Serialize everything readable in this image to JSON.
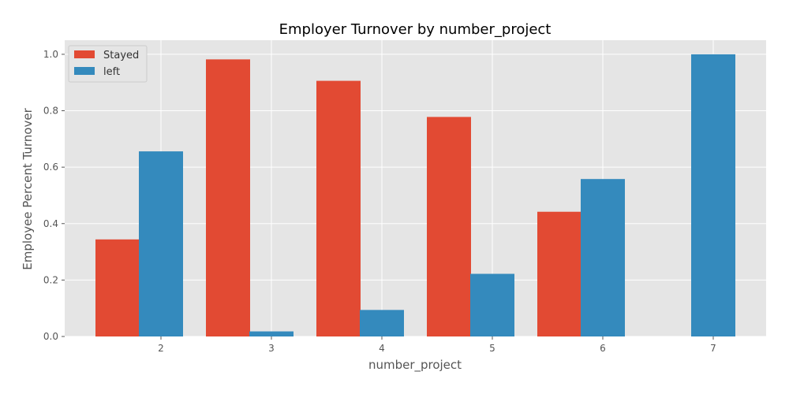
{
  "chart_data": {
    "type": "bar",
    "title": "Employer Turnover by number_project",
    "xlabel": "number_project",
    "ylabel": "Employee Percent Turnover",
    "categories": [
      "2",
      "3",
      "4",
      "5",
      "6",
      "7"
    ],
    "series": [
      {
        "name": "Stayed",
        "color": "#E24A33",
        "values": [
          0.344,
          0.982,
          0.906,
          0.778,
          0.442,
          0.0
        ]
      },
      {
        "name": "left",
        "color": "#348ABD",
        "values": [
          0.656,
          0.018,
          0.094,
          0.222,
          0.558,
          1.0
        ]
      }
    ],
    "ylim": [
      0,
      1.05
    ],
    "yticks": [
      "0.0",
      "0.2",
      "0.4",
      "0.6",
      "0.8",
      "1.0"
    ],
    "grid": true,
    "legend_position": "top-left",
    "style": {
      "background": "#E5E5E5",
      "grid_color": "#FFFFFF"
    }
  }
}
